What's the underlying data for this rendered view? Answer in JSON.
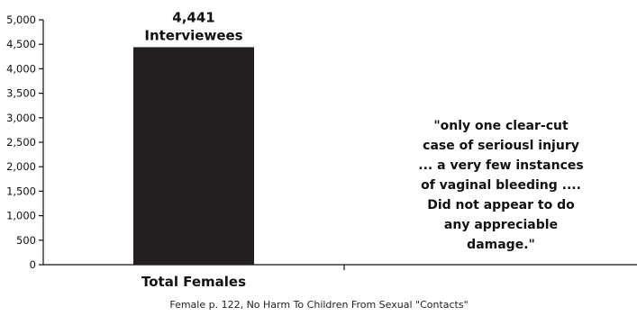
{
  "chart_data": {
    "type": "bar",
    "categories": [
      "Total Females"
    ],
    "values": [
      4441
    ],
    "ylim": [
      0,
      5000
    ],
    "yticks": [
      0,
      500,
      1000,
      1500,
      2000,
      2500,
      3000,
      3500,
      4000,
      4500,
      5000
    ],
    "ytick_labels": [
      "0",
      "500",
      "1,000",
      "1,500",
      "2,000",
      "2,500",
      "3,000",
      "3,500",
      "4,000",
      "4,500",
      "5,000"
    ],
    "data_label": {
      "value": "4,441",
      "unit": "Interviewees"
    },
    "grid": false,
    "legend": "none",
    "bar_color": "#231f20",
    "annotation": [
      "\"only one clear-cut",
      "case of seriousl injury",
      "... a very few instances",
      "of vaginal bleeding ....",
      "Did not appear to do",
      "any appreciable",
      "damage.\""
    ]
  },
  "caption": "Female p. 122, No Harm To Children From Sexual \"Contacts\""
}
